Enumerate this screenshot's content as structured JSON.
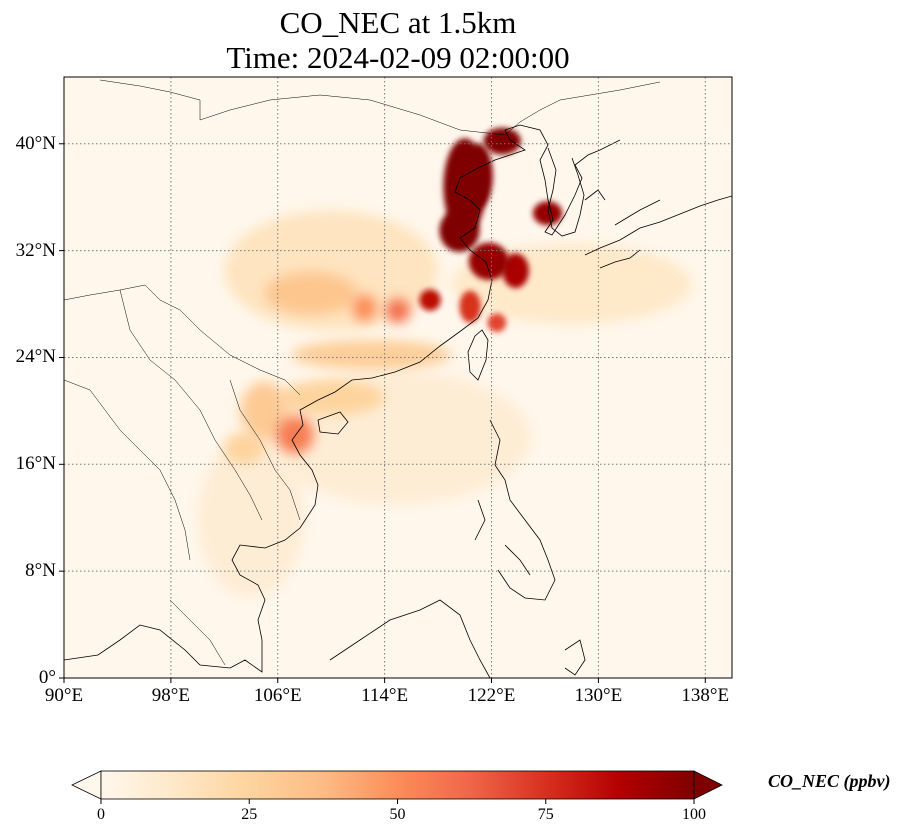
{
  "title": {
    "line1": "CO_NEC at 1.5km",
    "line2": "Time: 2024-02-09 02:00:00"
  },
  "map": {
    "projection": "PlateCarree",
    "lon_range": [
      90,
      140
    ],
    "lat_range": [
      0,
      45
    ],
    "gridlines": "dotted",
    "lat_ticks": [
      {
        "value": 0,
        "label": "0°"
      },
      {
        "value": 8,
        "label": "8°N"
      },
      {
        "value": 16,
        "label": "16°N"
      },
      {
        "value": 24,
        "label": "24°N"
      },
      {
        "value": 32,
        "label": "32°N"
      },
      {
        "value": 40,
        "label": "40°N"
      }
    ],
    "lon_ticks": [
      {
        "value": 90,
        "label": "90°E"
      },
      {
        "value": 98,
        "label": "98°E"
      },
      {
        "value": 106,
        "label": "106°E"
      },
      {
        "value": 114,
        "label": "114°E"
      },
      {
        "value": 122,
        "label": "122°E"
      },
      {
        "value": 130,
        "label": "130°E"
      },
      {
        "value": 138,
        "label": "138°E"
      }
    ],
    "features": [
      "coastlines",
      "country borders"
    ]
  },
  "colorbar": {
    "label": "CO_NEC (ppbv)",
    "colormap": "OrRd",
    "range": [
      0,
      100
    ],
    "extend": "both",
    "ticks": [
      {
        "value": 0,
        "label": "0"
      },
      {
        "value": 25,
        "label": "25"
      },
      {
        "value": 50,
        "label": "50"
      },
      {
        "value": 75,
        "label": "75"
      },
      {
        "value": 100,
        "label": "100"
      }
    ],
    "colors": [
      "#fff7ec",
      "#fee8c8",
      "#fdd49e",
      "#fdbb84",
      "#fc8d59",
      "#ef6548",
      "#d7301f",
      "#b30000",
      "#7f0000"
    ]
  },
  "plumes": [
    {
      "lon": 120.0,
      "lat": 36.8,
      "rlon": 1.6,
      "rlat": 3.6,
      "level": 100
    },
    {
      "lon": 121.0,
      "lat": 37.6,
      "rlon": 1.1,
      "rlat": 2.4,
      "level": 100
    },
    {
      "lon": 119.6,
      "lat": 33.5,
      "rlon": 1.5,
      "rlat": 1.6,
      "level": 100
    },
    {
      "lon": 122.8,
      "lat": 40.2,
      "rlon": 1.4,
      "rlat": 1.0,
      "level": 100
    },
    {
      "lon": 121.8,
      "lat": 31.2,
      "rlon": 1.5,
      "rlat": 1.4,
      "level": 95
    },
    {
      "lon": 123.8,
      "lat": 30.5,
      "rlon": 1.0,
      "rlat": 1.3,
      "level": 90
    },
    {
      "lon": 126.2,
      "lat": 34.8,
      "rlon": 1.1,
      "rlat": 0.9,
      "level": 95
    },
    {
      "lon": 117.4,
      "lat": 28.3,
      "rlon": 0.8,
      "rlat": 0.8,
      "level": 85
    },
    {
      "lon": 115.0,
      "lat": 27.5,
      "rlon": 0.9,
      "rlat": 0.9,
      "level": 60
    },
    {
      "lon": 112.5,
      "lat": 27.7,
      "rlon": 0.9,
      "rlat": 1.0,
      "level": 50
    },
    {
      "lon": 120.4,
      "lat": 27.8,
      "rlon": 0.8,
      "rlat": 1.2,
      "level": 75
    },
    {
      "lon": 122.4,
      "lat": 26.6,
      "rlon": 0.7,
      "rlat": 0.7,
      "level": 70
    },
    {
      "lon": 108.5,
      "lat": 28.8,
      "rlon": 3.5,
      "rlat": 1.6,
      "level": 32
    },
    {
      "lon": 113.0,
      "lat": 24.2,
      "rlon": 6.0,
      "rlat": 1.1,
      "level": 28
    },
    {
      "lon": 107.3,
      "lat": 18.2,
      "rlon": 1.4,
      "rlat": 1.4,
      "level": 55
    },
    {
      "lon": 105.0,
      "lat": 20.0,
      "rlon": 1.8,
      "rlat": 2.2,
      "level": 30
    },
    {
      "lon": 103.5,
      "lat": 17.2,
      "rlon": 1.5,
      "rlat": 1.2,
      "level": 25
    },
    {
      "lon": 110.0,
      "lat": 21.0,
      "rlon": 4.0,
      "rlat": 1.3,
      "level": 25
    },
    {
      "lon": 128.0,
      "lat": 29.5,
      "rlon": 9.0,
      "rlat": 3.0,
      "level": 12
    },
    {
      "lon": 110.0,
      "lat": 30.5,
      "rlon": 8.0,
      "rlat": 4.5,
      "level": 15
    },
    {
      "lon": 115.0,
      "lat": 18.0,
      "rlon": 10.0,
      "rlat": 5.0,
      "level": 8
    },
    {
      "lon": 104.0,
      "lat": 12.0,
      "rlon": 4.0,
      "rlat": 6.0,
      "level": 8
    }
  ]
}
